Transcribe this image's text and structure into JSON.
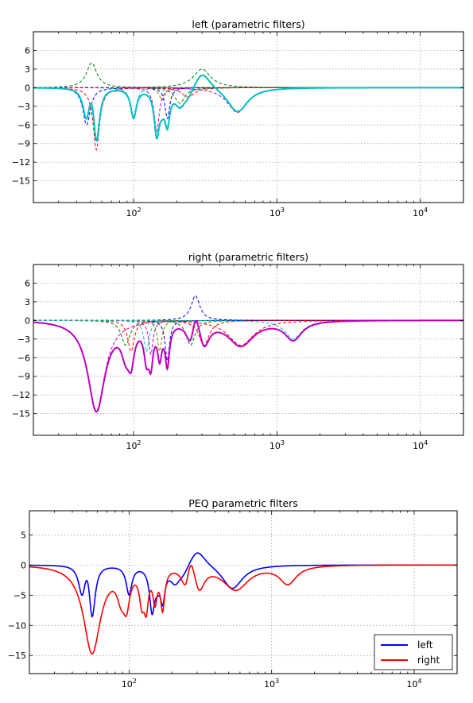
{
  "chart_data": [
    {
      "type": "line",
      "title": "left (parametric filters)",
      "xscale": "log",
      "xlim": [
        20,
        20000
      ],
      "ylim": [
        -18.5,
        9
      ],
      "grid": true,
      "yticks": [
        6,
        3,
        0,
        -3,
        -6,
        -9,
        -12,
        -15
      ],
      "ytick_labels": [
        "6",
        "3",
        "0",
        "−3",
        "−6",
        "−9",
        "−12",
        "−15"
      ],
      "xticks": [
        100,
        1000,
        10000
      ],
      "xtick_labels": [
        {
          "b": "10",
          "e": "2"
        },
        {
          "b": "10",
          "e": "3"
        },
        {
          "b": "10",
          "e": "4"
        }
      ],
      "filters": [
        {
          "f": 47,
          "g": -6,
          "q": 7,
          "color": "#0000ff"
        },
        {
          "f": 51,
          "g": 4,
          "q": 5,
          "color": "#008000"
        },
        {
          "f": 55,
          "g": -10,
          "q": 8,
          "color": "#ff0000"
        },
        {
          "f": 100,
          "g": -4.7,
          "q": 9,
          "color": "#00bfbf"
        },
        {
          "f": 145,
          "g": -7,
          "q": 10,
          "color": "#bf00bf"
        },
        {
          "f": 158,
          "g": -2,
          "q": 9,
          "color": "#808000"
        },
        {
          "f": 172,
          "g": -5,
          "q": 11,
          "color": "#0000ff"
        },
        {
          "f": 210,
          "g": -2.5,
          "q": 5,
          "color": "#008000"
        },
        {
          "f": 240,
          "g": -1.5,
          "q": 4,
          "color": "#ff0000"
        },
        {
          "f": 300,
          "g": 3,
          "q": 3,
          "color": "#008000"
        },
        {
          "f": 530,
          "g": -4,
          "q": 2.5,
          "color": "#bf00bf"
        }
      ],
      "total": {
        "name": "",
        "color": "#00bfbf"
      }
    },
    {
      "type": "line",
      "title": "right (parametric filters)",
      "xscale": "log",
      "xlim": [
        20,
        20000
      ],
      "ylim": [
        -18.5,
        9
      ],
      "grid": true,
      "yticks": [
        6,
        3,
        0,
        -3,
        -6,
        -9,
        -12,
        -15
      ],
      "ytick_labels": [
        "6",
        "3",
        "0",
        "−3",
        "−6",
        "−9",
        "−12",
        "−15"
      ],
      "xticks": [
        100,
        1000,
        10000
      ],
      "xtick_labels": [
        {
          "b": "10",
          "e": "2"
        },
        {
          "b": "10",
          "e": "3"
        },
        {
          "b": "10",
          "e": "4"
        }
      ],
      "filters": [
        {
          "f": 55,
          "g": -14.5,
          "q": 3,
          "color": "#bf00bf"
        },
        {
          "f": 88,
          "g": -4,
          "q": 6,
          "color": "#008000"
        },
        {
          "f": 96,
          "g": -5,
          "q": 8,
          "color": "#ff0000"
        },
        {
          "f": 123,
          "g": -5,
          "q": 10,
          "color": "#00bfbf"
        },
        {
          "f": 132,
          "g": -5.5,
          "q": 12,
          "color": "#bf00bf"
        },
        {
          "f": 152,
          "g": -5,
          "q": 12,
          "color": "#808000"
        },
        {
          "f": 172,
          "g": -6.5,
          "q": 12,
          "color": "#0000ff"
        },
        {
          "f": 250,
          "g": -4,
          "q": 6,
          "color": "#008000"
        },
        {
          "f": 270,
          "g": 4,
          "q": 6,
          "color": "#0000ff"
        },
        {
          "f": 310,
          "g": -4,
          "q": 5,
          "color": "#ff0000"
        },
        {
          "f": 560,
          "g": -4,
          "q": 2,
          "color": "#ff0000"
        },
        {
          "f": 1300,
          "g": -3,
          "q": 3,
          "color": "#00bfbf"
        }
      ],
      "total": {
        "name": "",
        "color": "#bf00bf"
      }
    },
    {
      "type": "line",
      "title": "PEQ parametric filters",
      "xscale": "log",
      "xlim": [
        20,
        20000
      ],
      "ylim": [
        -18,
        9
      ],
      "grid": true,
      "yticks": [
        5,
        0,
        -5,
        -10,
        -15
      ],
      "ytick_labels": [
        "5",
        "0",
        "−5",
        "−10",
        "−15"
      ],
      "xticks": [
        100,
        1000,
        10000
      ],
      "xtick_labels": [
        {
          "b": "10",
          "e": "2"
        },
        {
          "b": "10",
          "e": "3"
        },
        {
          "b": "10",
          "e": "4"
        }
      ],
      "legend": "lower right",
      "series": [
        {
          "name": "left",
          "color": "#0000ff",
          "source": 0
        },
        {
          "name": "right",
          "color": "#ff0000",
          "source": 1
        }
      ]
    }
  ]
}
